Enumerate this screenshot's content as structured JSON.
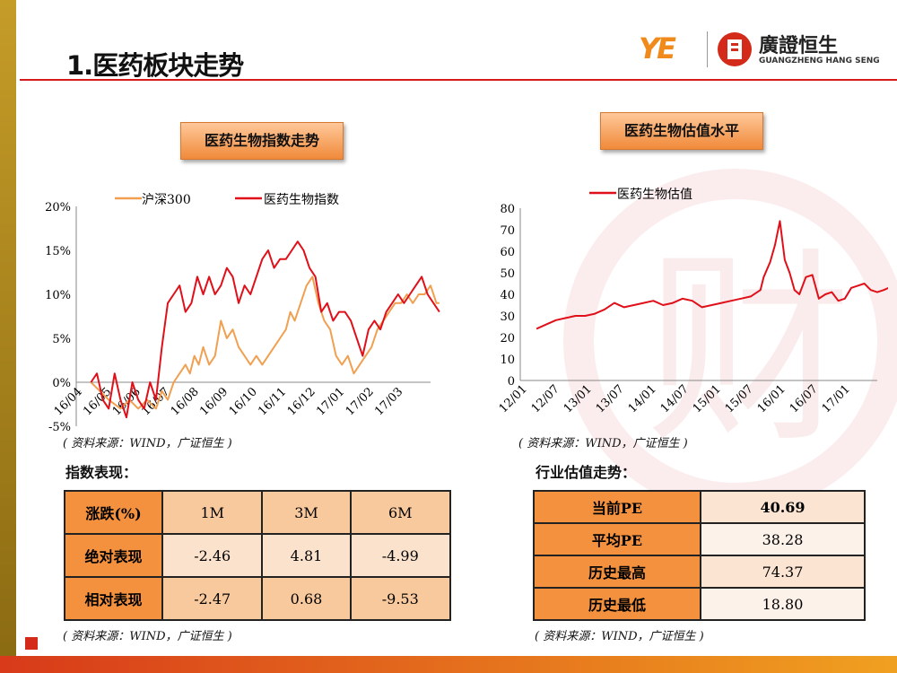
{
  "title": "1.医药板块走势",
  "brand": {
    "ye_logo": "YE",
    "name": "廣證恒生",
    "sub": "GUANGZHENG HANG SENG"
  },
  "left_chart": {
    "badge": "医药生物指数走势",
    "source": "( 资料来源：WIND，广证恒生 )",
    "chart_data": {
      "type": "line",
      "title": "医药生物指数走势",
      "legend": [
        "沪深300",
        "医药生物指数"
      ],
      "series_colors": [
        "#f0a050",
        "#e0101a"
      ],
      "x_ticks": [
        "16/04",
        "16/05",
        "16/06",
        "16/07",
        "16/08",
        "16/09",
        "16/10",
        "16/11",
        "16/12",
        "17/01",
        "17/02",
        "17/03"
      ],
      "y_ticks": [
        "-5%",
        "0%",
        "5%",
        "10%",
        "15%",
        "20%"
      ],
      "ylim": [
        -5,
        20
      ],
      "series": [
        {
          "name": "沪深300",
          "x": [
            0,
            0.3,
            0.6,
            1.0,
            1.3,
            1.6,
            1.9,
            2.2,
            2.4,
            2.6,
            2.8,
            3.0,
            3.2,
            3.35,
            3.5,
            3.65,
            3.8,
            4.0,
            4.2,
            4.4,
            4.6,
            4.8,
            5.0,
            5.2,
            5.4,
            5.6,
            5.8,
            6.0,
            6.2,
            6.4,
            6.6,
            6.75,
            6.9,
            7.1,
            7.3,
            7.5,
            7.7,
            7.9,
            8.1,
            8.3,
            8.5,
            8.7,
            8.9,
            9.1,
            9.3,
            9.5,
            9.7,
            9.9,
            10.1,
            10.3,
            10.5,
            10.7,
            10.9,
            11.1,
            11.3,
            11.5,
            11.7,
            11.8
          ],
          "values": [
            0,
            -1,
            -2,
            -3,
            -2,
            -3,
            -2,
            -3,
            -1,
            -2,
            0,
            1,
            2,
            1,
            3,
            2,
            4,
            2,
            3,
            7,
            5,
            6,
            4,
            3,
            2,
            3,
            2,
            3,
            4,
            5,
            6,
            8,
            7,
            9,
            11,
            12,
            9,
            7,
            6,
            3,
            2,
            3,
            1,
            2,
            3,
            4,
            6,
            7,
            8,
            9,
            9,
            10,
            9,
            10,
            10,
            11,
            9,
            9
          ]
        },
        {
          "name": "医药生物指数",
          "x": [
            0,
            0.2,
            0.4,
            0.6,
            0.8,
            1.0,
            1.2,
            1.4,
            1.6,
            1.8,
            2.0,
            2.2,
            2.4,
            2.6,
            2.8,
            3.0,
            3.2,
            3.4,
            3.6,
            3.8,
            4.0,
            4.2,
            4.4,
            4.6,
            4.8,
            5.0,
            5.2,
            5.4,
            5.6,
            5.8,
            6.0,
            6.2,
            6.4,
            6.6,
            6.8,
            7.0,
            7.2,
            7.4,
            7.6,
            7.8,
            8.0,
            8.2,
            8.4,
            8.6,
            8.8,
            9.0,
            9.2,
            9.4,
            9.6,
            9.8,
            10.0,
            10.2,
            10.4,
            10.6,
            10.8,
            11.0,
            11.2,
            11.4,
            11.6,
            11.8
          ],
          "values": [
            0,
            1,
            -2,
            -3,
            1,
            -2,
            -4,
            0,
            -2,
            -3,
            0,
            -2,
            4,
            9,
            10,
            11,
            8,
            9,
            12,
            10,
            12,
            10,
            11,
            13,
            12,
            9,
            11,
            10,
            12,
            14,
            15,
            13,
            14,
            14,
            15,
            16,
            15,
            13,
            12,
            8,
            9,
            7,
            8,
            8,
            7,
            5,
            3,
            6,
            7,
            6,
            8,
            9,
            10,
            9,
            10,
            11,
            12,
            10,
            9,
            8
          ]
        }
      ]
    }
  },
  "right_chart": {
    "badge": "医药生物估值水平",
    "source": "( 资料来源：WIND，广证恒生 )",
    "chart_data": {
      "type": "line",
      "title": "医药生物估值水平",
      "legend": [
        "医药生物估值"
      ],
      "series_colors": [
        "#e0101a"
      ],
      "x_ticks": [
        "12/01",
        "12/07",
        "13/01",
        "13/07",
        "14/01",
        "14/07",
        "15/01",
        "15/07",
        "16/01",
        "16/07",
        "17/01"
      ],
      "y_ticks": [
        "0",
        "10",
        "20",
        "30",
        "40",
        "50",
        "60",
        "70",
        "80"
      ],
      "ylim": [
        0,
        80
      ],
      "series": [
        {
          "name": "医药生物估值",
          "x": [
            0,
            0.3,
            0.6,
            0.9,
            1.2,
            1.5,
            1.8,
            2.1,
            2.4,
            2.7,
            3.0,
            3.3,
            3.6,
            3.9,
            4.2,
            4.5,
            4.8,
            5.1,
            5.4,
            5.7,
            6.0,
            6.3,
            6.6,
            6.9,
            7.0,
            7.2,
            7.35,
            7.5,
            7.65,
            7.8,
            7.95,
            8.1,
            8.3,
            8.5,
            8.7,
            8.9,
            9.1,
            9.3,
            9.5,
            9.7,
            9.9,
            10.1,
            10.3,
            10.5,
            10.7,
            10.85
          ],
          "values": [
            24,
            26,
            28,
            29,
            30,
            30,
            31,
            33,
            36,
            34,
            35,
            36,
            37,
            35,
            36,
            38,
            37,
            34,
            35,
            36,
            37,
            38,
            39,
            42,
            48,
            55,
            63,
            74,
            56,
            50,
            42,
            40,
            48,
            49,
            38,
            40,
            41,
            37,
            38,
            43,
            44,
            45,
            42,
            41,
            42,
            43
          ]
        }
      ]
    }
  },
  "index_perf": {
    "heading": "指数表现：",
    "headers": [
      "涨跌(%)",
      "1M",
      "3M",
      "6M"
    ],
    "rows": [
      {
        "label": "绝对表现",
        "cells": [
          "-2.46",
          "4.81",
          "-4.99"
        ]
      },
      {
        "label": "相对表现",
        "cells": [
          "-2.47",
          "0.68",
          "-9.53"
        ]
      }
    ],
    "source": "( 资料来源：WIND，广证恒生 )"
  },
  "valuation": {
    "heading": "行业估值走势：",
    "rows": [
      {
        "label": "当前PE",
        "value": "40.69"
      },
      {
        "label": "平均PE",
        "value": "38.28"
      },
      {
        "label": "历史最高",
        "value": "74.37"
      },
      {
        "label": "历史最低",
        "value": "18.80"
      }
    ],
    "source": "( 资料来源：WIND，广证恒生 )"
  },
  "watermark": "财"
}
